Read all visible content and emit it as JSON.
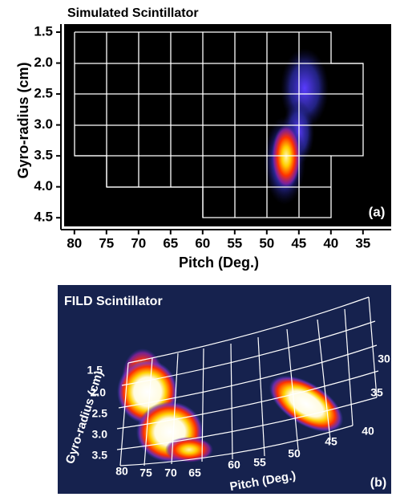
{
  "chart_data": [
    {
      "type": "heatmap",
      "title": "Simulated Scintillator",
      "x_label": "Pitch (Deg.)",
      "y_label": "Gyro-radius (cm)",
      "annotation": "(a)",
      "xlim": [
        81.6,
        30.6
      ],
      "ylim": [
        4.64,
        1.37
      ],
      "xticks": [
        80,
        75,
        70,
        65,
        60,
        55,
        50,
        45,
        40,
        35
      ],
      "yticks": [
        1.5,
        {
          "value": 2,
          "label": "2.0"
        },
        2.5,
        {
          "value": 3,
          "label": "3.0"
        },
        3.5,
        {
          "value": 4,
          "label": "4.0"
        },
        4.5
      ]
    },
    {
      "type": "image",
      "title": "FILD Scintillator",
      "x_label": "Pitch (Deg.)",
      "y_label": "Gyro-radius (cm)",
      "annotation": "(b)",
      "yticks": [
        1.5,
        {
          "value": 2,
          "label": "2.0"
        },
        2.5,
        {
          "value": 3,
          "label": "3.0"
        },
        3.5
      ],
      "xticks": [
        80,
        75,
        70,
        65,
        60,
        55,
        50,
        45,
        40,
        35,
        30
      ]
    }
  ]
}
